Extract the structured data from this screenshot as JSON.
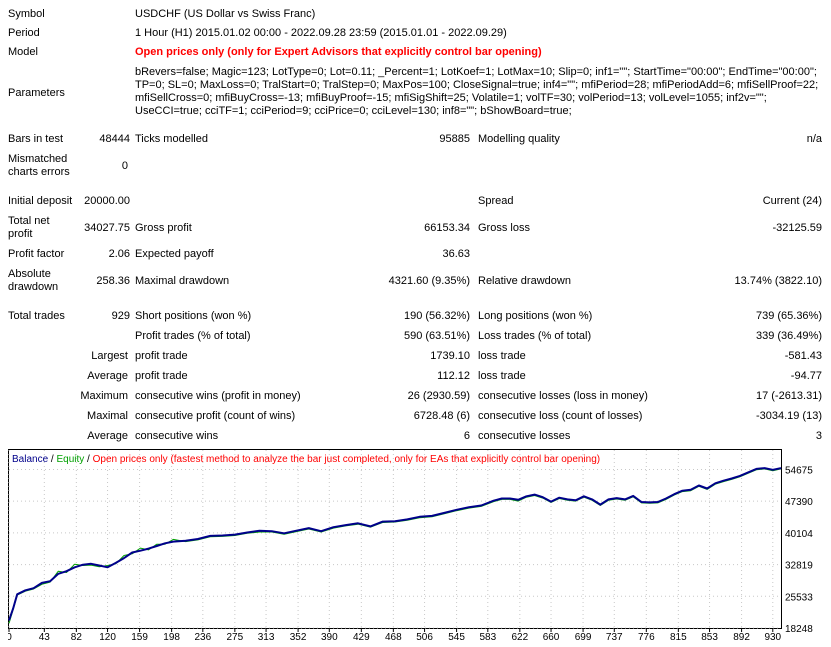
{
  "labels": {
    "symbol": "Symbol",
    "period": "Period",
    "model": "Model",
    "parameters": "Parameters",
    "bars_in_test": "Bars in test",
    "ticks_modelled": "Ticks modelled",
    "modelling_quality": "Modelling quality",
    "mismatched_errors": "Mismatched charts errors",
    "initial_deposit": "Initial deposit",
    "spread": "Spread",
    "total_net_profit": "Total net profit",
    "gross_profit": "Gross profit",
    "gross_loss": "Gross loss",
    "profit_factor": "Profit factor",
    "expected_payoff": "Expected payoff",
    "absolute_drawdown": "Absolute drawdown",
    "maximal_drawdown": "Maximal drawdown",
    "relative_drawdown": "Relative drawdown",
    "total_trades": "Total trades",
    "short_positions": "Short positions (won %)",
    "long_positions": "Long positions (won %)",
    "profit_trades": "Profit trades (% of total)",
    "loss_trades": "Loss trades (% of total)",
    "largest": "Largest",
    "average": "Average",
    "maximum": "Maximum",
    "maximal": "Maximal",
    "average2": "Average",
    "profit_trade": "profit trade",
    "loss_trade": "loss trade",
    "cons_wins_money": "consecutive wins (profit in money)",
    "cons_losses_money": "consecutive losses (loss in money)",
    "cons_profit_count": "consecutive profit (count of wins)",
    "cons_loss_count": "consecutive loss (count of losses)",
    "cons_wins": "consecutive wins",
    "cons_losses": "consecutive losses"
  },
  "values": {
    "symbol": "USDCHF (US Dollar vs Swiss Franc)",
    "period": "1 Hour (H1) 2015.01.02 00:00 - 2022.09.28 23:59 (2015.01.01 - 2022.09.29)",
    "model": "Open prices only (only for Expert Advisors that explicitly control bar opening)",
    "parameters": "bRevers=false; Magic=123; LotType=0; Lot=0.11; _Percent=1; LotKoef=1; LotMax=10; Slip=0; inf1=\"\"; StartTime=\"00:00\"; EndTime=\"00:00\"; TP=0; SL=0; MaxLoss=0; TralStart=0; TralStep=0; MaxPos=100; CloseSignal=true; inf4=\"\"; mfiPeriod=28; mfiPeriodAdd=6; mfiSellProof=22; mfiSellCross=0; mfiBuyCross=-13; mfiBuyProof=-15; mfiSigShift=25; Volatile=1; volTF=30; volPeriod=13; volLevel=1055; inf2v=\"\"; UseCCI=true; cciTF=1; cciPeriod=9; cciPrice=0; cciLevel=130; inf8=\"\"; bShowBoard=true;",
    "bars_in_test": "48444",
    "ticks_modelled": "95885",
    "modelling_quality": "n/a",
    "mismatched_errors": "0",
    "initial_deposit": "20000.00",
    "spread": "Current (24)",
    "total_net_profit": "34027.75",
    "gross_profit": "66153.34",
    "gross_loss": "-32125.59",
    "profit_factor": "2.06",
    "expected_payoff": "36.63",
    "absolute_drawdown": "258.36",
    "maximal_drawdown": "4321.60 (9.35%)",
    "relative_drawdown": "13.74% (3822.10)",
    "total_trades": "929",
    "short_positions": "190 (56.32%)",
    "long_positions": "739 (65.36%)",
    "profit_trades": "590 (63.51%)",
    "loss_trades": "339 (36.49%)",
    "largest_profit": "1739.10",
    "largest_loss": "-581.43",
    "average_profit": "112.12",
    "average_loss": "-94.77",
    "max_cons_wins": "26 (2930.59)",
    "max_cons_losses": "17 (-2613.31)",
    "maximal_cons_profit": "6728.48 (6)",
    "maximal_cons_loss": "-3034.19 (13)",
    "avg_cons_wins": "6",
    "avg_cons_losses": "3"
  },
  "chart": {
    "legend_balance": "Balance",
    "legend_sep1": " / ",
    "legend_equity": "Equity",
    "legend_sep2": " / ",
    "legend_model": "Open prices only (fastest method to analyze the bar just completed, only for EAs that explicitly control bar opening)",
    "colors": {
      "balance": "#00008b",
      "equity": "#00a000",
      "model": "#ff0000",
      "grid": "#c8c8c8"
    }
  },
  "chart_data": {
    "type": "line",
    "xlabel": "",
    "ylabel": "",
    "x_ticks": [
      0,
      43,
      82,
      120,
      159,
      198,
      236,
      275,
      313,
      352,
      390,
      429,
      468,
      506,
      545,
      583,
      622,
      660,
      699,
      737,
      776,
      815,
      853,
      892,
      930
    ],
    "y_ticks": [
      18248,
      25533,
      32819,
      40104,
      47390,
      54675
    ],
    "xlim": [
      0,
      940
    ],
    "ylim": [
      18248,
      59150
    ],
    "series": [
      {
        "name": "Balance",
        "x": [
          0,
          5,
          10,
          20,
          30,
          40,
          50,
          60,
          70,
          80,
          90,
          100,
          110,
          120,
          130,
          140,
          150,
          160,
          170,
          180,
          190,
          200,
          215,
          230,
          245,
          260,
          275,
          290,
          305,
          320,
          335,
          350,
          365,
          380,
          395,
          410,
          425,
          440,
          455,
          470,
          485,
          500,
          515,
          530,
          545,
          560,
          575,
          590,
          600,
          610,
          620,
          630,
          640,
          650,
          660,
          670,
          680,
          690,
          700,
          710,
          720,
          730,
          740,
          750,
          760,
          770,
          780,
          790,
          800,
          810,
          820,
          830,
          840,
          850,
          860,
          870,
          880,
          890,
          900,
          910,
          920,
          930,
          940
        ],
        "y": [
          20000,
          22700,
          26000,
          26900,
          27400,
          28600,
          29000,
          30700,
          31300,
          32200,
          32800,
          33000,
          32600,
          32200,
          33200,
          34300,
          35600,
          36000,
          36500,
          37100,
          37700,
          38100,
          38300,
          38700,
          39400,
          39500,
          39700,
          40200,
          40600,
          40500,
          40000,
          40600,
          41200,
          40500,
          41400,
          41900,
          42300,
          41600,
          42700,
          42800,
          43200,
          43800,
          44000,
          44700,
          45400,
          46000,
          46400,
          47500,
          48000,
          48000,
          47700,
          48500,
          48900,
          48300,
          47300,
          48200,
          47800,
          47600,
          48500,
          47800,
          46600,
          47800,
          48100,
          47800,
          48600,
          47200,
          47100,
          47200,
          48000,
          49000,
          49800,
          50000,
          51000,
          50300,
          51500,
          52100,
          52600,
          53200,
          54000,
          54800,
          55000,
          54600,
          55000
        ]
      },
      {
        "name": "Equity",
        "x": [
          0,
          5,
          10,
          20,
          30,
          40,
          50,
          60,
          70,
          80,
          90,
          100,
          110,
          120,
          130,
          140,
          150,
          160,
          170,
          180,
          190,
          200,
          215,
          230,
          245,
          260,
          275,
          290,
          305,
          320,
          335,
          350,
          365,
          380,
          395,
          410,
          425,
          440,
          455,
          470,
          485,
          500,
          515,
          530,
          545,
          560,
          575,
          590,
          600,
          610,
          620,
          630,
          640,
          650,
          660,
          670,
          680,
          690,
          700,
          710,
          720,
          730,
          740,
          750,
          760,
          770,
          780,
          790,
          800,
          810,
          820,
          830,
          840,
          850,
          860,
          870,
          880,
          890,
          900,
          910,
          920,
          930,
          940
        ],
        "y": [
          19300,
          22400,
          25800,
          26700,
          27200,
          28300,
          28800,
          31300,
          31000,
          32900,
          32600,
          32700,
          32300,
          32600,
          33000,
          34900,
          35300,
          36600,
          36200,
          37500,
          37500,
          38600,
          38100,
          38500,
          39200,
          39300,
          39500,
          40000,
          40300,
          40300,
          39800,
          40400,
          41000,
          40300,
          41200,
          41700,
          42100,
          41400,
          42500,
          42600,
          43000,
          43600,
          43800,
          44500,
          45200,
          45800,
          46200,
          47300,
          47800,
          47800,
          47400,
          48300,
          48700,
          48100,
          47100,
          48000,
          47600,
          47400,
          48300,
          47600,
          46400,
          47600,
          47900,
          47600,
          48400,
          47000,
          46900,
          47000,
          47800,
          48800,
          49600,
          49800,
          50800,
          50100,
          51300,
          51900,
          52400,
          53000,
          53800,
          54600,
          54800,
          54400,
          54800
        ]
      }
    ]
  }
}
